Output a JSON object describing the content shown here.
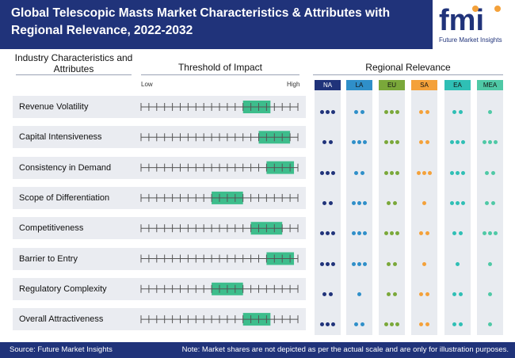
{
  "header": {
    "title": "Global Telescopic Masts Market Characteristics & Attributes with Regional Relevance, 2022-2032",
    "logo_text": "fmi",
    "logo_subtext": "Future Market Insights"
  },
  "columns": {
    "characteristics": "Industry Characteristics and Attributes",
    "threshold": "Threshold of Impact",
    "regional": "Regional Relevance"
  },
  "scale_labels": {
    "low": "Low",
    "high": "High"
  },
  "colors": {
    "header": "#20337a",
    "highlight": "#3dbd8c",
    "NA": "#20337a",
    "LA": "#2f8fc9",
    "EU": "#7aa83a",
    "SA": "#f4a13a",
    "EA": "#2fbfb5",
    "MEA": "#4fc9a6"
  },
  "chart_data": {
    "type": "table",
    "scale_ticks": 20,
    "regions": [
      "NA",
      "LA",
      "EU",
      "SA",
      "EA",
      "MEA"
    ],
    "rows": [
      {
        "label": "Revenue Volatility",
        "impact": [
          13,
          16.5
        ],
        "relevance": [
          3,
          2,
          3,
          2,
          2,
          1
        ]
      },
      {
        "label": "Capital Intensiveness",
        "impact": [
          15,
          19
        ],
        "relevance": [
          2,
          3,
          3,
          2,
          3,
          3
        ]
      },
      {
        "label": "Consistency in Demand",
        "impact": [
          16,
          19.5
        ],
        "relevance": [
          3,
          2,
          3,
          3,
          3,
          2
        ]
      },
      {
        "label": "Scope of Differentiation",
        "impact": [
          9,
          13
        ],
        "relevance": [
          2,
          3,
          2,
          1,
          3,
          2
        ]
      },
      {
        "label": "Competitiveness",
        "impact": [
          14,
          18
        ],
        "relevance": [
          3,
          3,
          3,
          2,
          2,
          3
        ]
      },
      {
        "label": "Barrier to Entry",
        "impact": [
          16,
          19.5
        ],
        "relevance": [
          3,
          3,
          2,
          1,
          1,
          1
        ]
      },
      {
        "label": "Regulatory Complexity",
        "impact": [
          9,
          13
        ],
        "relevance": [
          2,
          1,
          2,
          2,
          2,
          1
        ]
      },
      {
        "label": "Overall Attractiveness",
        "impact": [
          13,
          16.5
        ],
        "relevance": [
          3,
          2,
          3,
          2,
          2,
          1
        ]
      }
    ]
  },
  "footer": {
    "source": "Source: Future Market Insights",
    "note": "Note: Market shares are not depicted as per the actual scale and are only for illustration purposes."
  }
}
